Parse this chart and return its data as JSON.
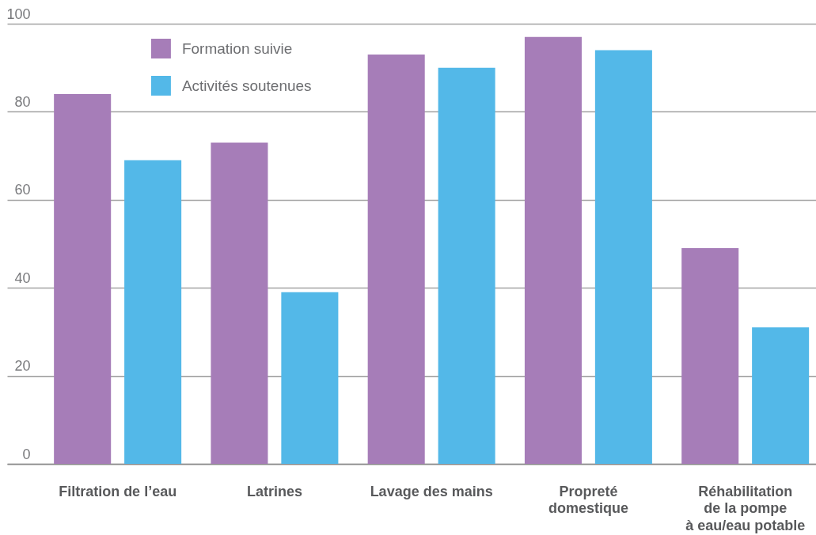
{
  "chart_data": {
    "type": "bar",
    "categories": [
      "Filtration de l’eau",
      "Latrines",
      "Lavage des mains",
      "Propreté\ndomestique",
      "Réhabilitation\nde la pompe\nà eau/eau potable"
    ],
    "series": [
      {
        "name": "Formation suivie",
        "color": "#a67db8",
        "values": [
          84,
          73,
          93,
          97,
          49
        ]
      },
      {
        "name": "Activités soutenues",
        "color": "#53b8e8",
        "values": [
          69,
          39,
          90,
          94,
          31
        ]
      }
    ],
    "ylim": [
      0,
      100
    ],
    "yticks": [
      0,
      20,
      40,
      60,
      80,
      100
    ],
    "grid": "y",
    "legend": "top left"
  }
}
